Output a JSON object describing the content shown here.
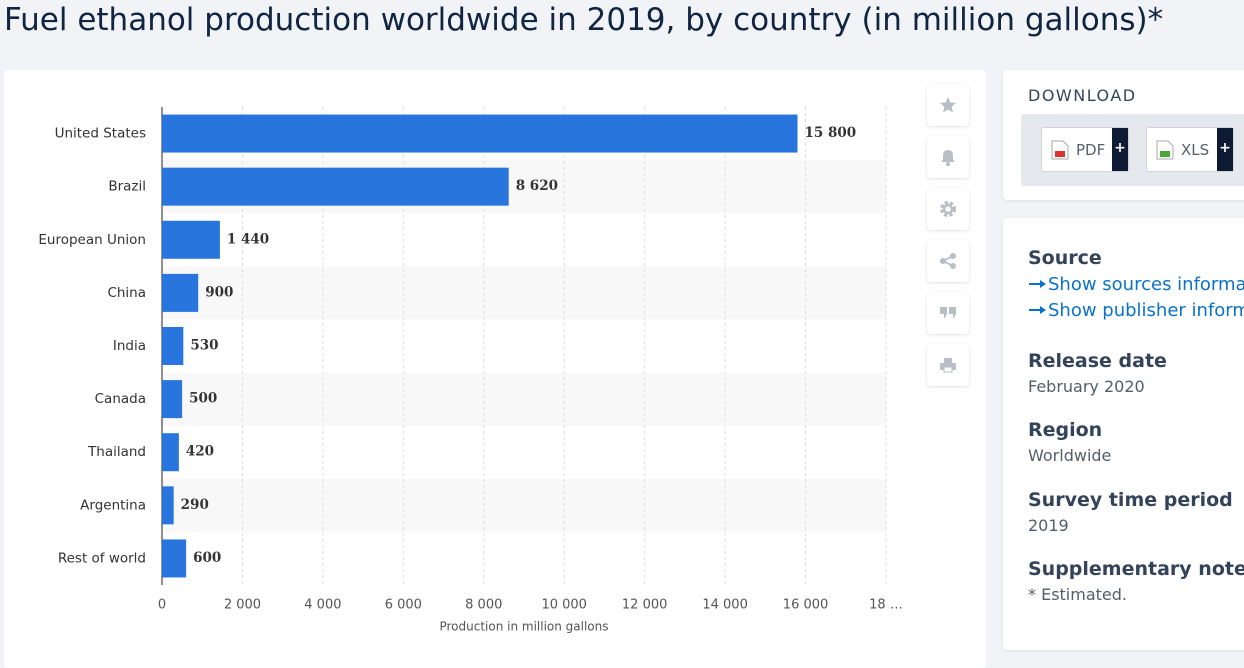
{
  "chart_data": {
    "type": "bar",
    "orientation": "horizontal",
    "title": "Fuel ethanol production worldwide in 2019, by country (in million gallons)*",
    "categories": [
      "United States",
      "Brazil",
      "European Union",
      "China",
      "India",
      "Canada",
      "Thailand",
      "Argentina",
      "Rest of world"
    ],
    "values": [
      15800,
      8620,
      1440,
      900,
      530,
      500,
      420,
      290,
      600
    ],
    "value_labels": [
      "15 800",
      "8 620",
      "1 440",
      "900",
      "530",
      "500",
      "420",
      "290",
      "600"
    ],
    "color": "#2876dd",
    "xlabel": "Production in million gallons",
    "xlim": [
      0,
      18000
    ],
    "xticks": [
      0,
      {
        "value": 2000,
        "label": "2 000"
      },
      {
        "value": 4000,
        "label": "4 000"
      },
      {
        "value": 6000,
        "label": "6 000"
      },
      {
        "value": 8000,
        "label": "8 000"
      },
      {
        "value": 10000,
        "label": "10 000"
      },
      {
        "value": 12000,
        "label": "12 000"
      },
      {
        "value": 14000,
        "label": "14 000"
      },
      {
        "value": 16000,
        "label": "16 000"
      },
      {
        "value": 18000,
        "label": "18 …"
      }
    ],
    "grid": true
  },
  "sidebar": {
    "download": {
      "title": "DOWNLOAD",
      "buttons": [
        {
          "label": "PDF",
          "plus": "+"
        },
        {
          "label": "XLS",
          "plus": "+"
        }
      ]
    },
    "details": [
      {
        "heading": "Source",
        "links": [
          "Show sources information",
          "Show publisher information"
        ]
      },
      {
        "heading": "Release date",
        "text": "February 2020"
      },
      {
        "heading": "Region",
        "text": "Worldwide"
      },
      {
        "heading": "Survey time period",
        "text": "2019"
      },
      {
        "heading": "Supplementary notes",
        "text": "* Estimated."
      }
    ]
  }
}
